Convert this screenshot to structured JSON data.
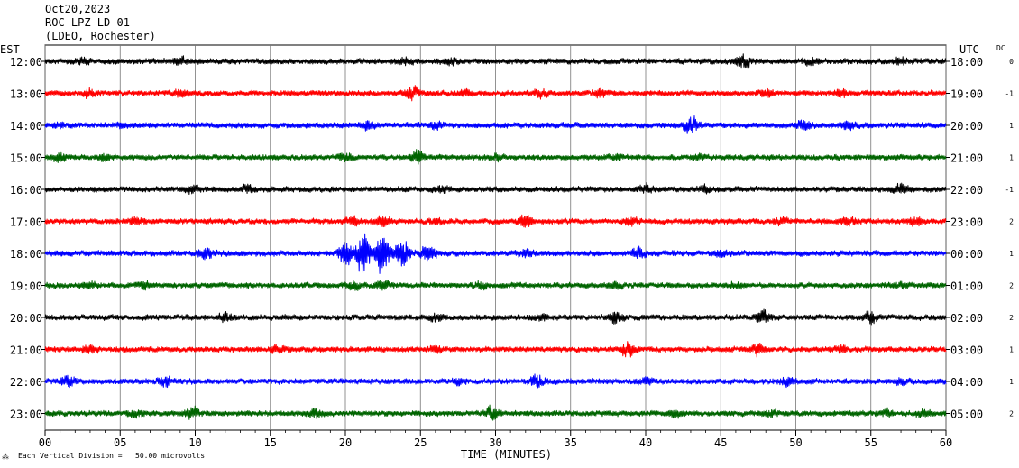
{
  "header": {
    "date": "Oct20,2023",
    "station": "ROC LPZ LD 01",
    "network": "(LDEO, Rochester)"
  },
  "labels": {
    "left_zone": "EST",
    "right_zone": "UTC",
    "dc": "DC",
    "scale_note": "Each Vertical Division =   50.00 microvolts"
  },
  "colors": {
    "trace_cycle": [
      "#000000",
      "#ff0000",
      "#0000ff",
      "#006400"
    ]
  },
  "chart_data": {
    "type": "line",
    "title": "",
    "xlabel": "TIME (MINUTES)",
    "ylabel": "",
    "xlim": [
      0,
      60
    ],
    "x_ticks": [
      "00",
      "05",
      "10",
      "15",
      "20",
      "25",
      "30",
      "35",
      "40",
      "45",
      "50",
      "55",
      "60"
    ],
    "grid": true,
    "series": [
      {
        "est": "12:00",
        "utc": "18:00",
        "dc": "0",
        "color": "#000000",
        "amplitude": 4,
        "bursts": [
          {
            "t": 2.5,
            "a": 2
          },
          {
            "t": 9,
            "a": 2
          },
          {
            "t": 24,
            "a": 2
          },
          {
            "t": 27,
            "a": 1.8
          },
          {
            "t": 46.5,
            "a": 3
          },
          {
            "t": 51,
            "a": 2
          },
          {
            "t": 57,
            "a": 1.8
          }
        ]
      },
      {
        "est": "13:00",
        "utc": "19:00",
        "dc": "-1",
        "color": "#ff0000",
        "amplitude": 4,
        "bursts": [
          {
            "t": 3,
            "a": 2
          },
          {
            "t": 9,
            "a": 1.8
          },
          {
            "t": 24.5,
            "a": 3
          },
          {
            "t": 28,
            "a": 2
          },
          {
            "t": 33,
            "a": 2.2
          },
          {
            "t": 37,
            "a": 2
          },
          {
            "t": 48,
            "a": 2.2
          },
          {
            "t": 53,
            "a": 2
          }
        ]
      },
      {
        "est": "14:00",
        "utc": "20:00",
        "dc": "1",
        "color": "#0000ff",
        "amplitude": 4,
        "bursts": [
          {
            "t": 1,
            "a": 1.6
          },
          {
            "t": 5,
            "a": 1.6
          },
          {
            "t": 21.5,
            "a": 2.2
          },
          {
            "t": 26,
            "a": 1.8
          },
          {
            "t": 43,
            "a": 3.5
          },
          {
            "t": 50.5,
            "a": 2.5
          },
          {
            "t": 53.5,
            "a": 2
          }
        ]
      },
      {
        "est": "15:00",
        "utc": "21:00",
        "dc": "1",
        "color": "#006400",
        "amplitude": 4,
        "bursts": [
          {
            "t": 1,
            "a": 2.2
          },
          {
            "t": 4,
            "a": 2
          },
          {
            "t": 20,
            "a": 2
          },
          {
            "t": 24.8,
            "a": 3
          },
          {
            "t": 30,
            "a": 1.8
          },
          {
            "t": 38,
            "a": 1.6
          },
          {
            "t": 43.5,
            "a": 1.6
          }
        ]
      },
      {
        "est": "16:00",
        "utc": "22:00",
        "dc": "-1",
        "color": "#000000",
        "amplitude": 4,
        "bursts": [
          {
            "t": 9.8,
            "a": 2
          },
          {
            "t": 13.5,
            "a": 2
          },
          {
            "t": 26.5,
            "a": 1.8
          },
          {
            "t": 40,
            "a": 2.2
          },
          {
            "t": 44,
            "a": 2
          },
          {
            "t": 57,
            "a": 2.2
          }
        ]
      },
      {
        "est": "17:00",
        "utc": "23:00",
        "dc": "2",
        "color": "#ff0000",
        "amplitude": 4,
        "bursts": [
          {
            "t": 6,
            "a": 2
          },
          {
            "t": 20.5,
            "a": 2.2
          },
          {
            "t": 22.5,
            "a": 2.5
          },
          {
            "t": 26,
            "a": 1.8
          },
          {
            "t": 32,
            "a": 3
          },
          {
            "t": 39,
            "a": 2
          },
          {
            "t": 49,
            "a": 2
          },
          {
            "t": 53.5,
            "a": 2
          },
          {
            "t": 58,
            "a": 2.2
          }
        ]
      },
      {
        "est": "18:00",
        "utc": "00:00",
        "dc": "1",
        "color": "#0000ff",
        "amplitude": 4,
        "bursts": [
          {
            "t": 10.7,
            "a": 2.5
          },
          {
            "t": 20,
            "a": 5
          },
          {
            "t": 21.2,
            "a": 9
          },
          {
            "t": 22.5,
            "a": 8
          },
          {
            "t": 23.8,
            "a": 6
          },
          {
            "t": 25.5,
            "a": 3.5
          },
          {
            "t": 32,
            "a": 2
          },
          {
            "t": 39.5,
            "a": 2.5
          },
          {
            "t": 45,
            "a": 1.8
          }
        ]
      },
      {
        "est": "19:00",
        "utc": "01:00",
        "dc": "2",
        "color": "#006400",
        "amplitude": 4,
        "bursts": [
          {
            "t": 3,
            "a": 2
          },
          {
            "t": 6.5,
            "a": 2
          },
          {
            "t": 20.5,
            "a": 2.2
          },
          {
            "t": 22.5,
            "a": 2.5
          },
          {
            "t": 29,
            "a": 1.8
          },
          {
            "t": 38,
            "a": 1.8
          },
          {
            "t": 46,
            "a": 1.6
          },
          {
            "t": 57,
            "a": 1.6
          }
        ]
      },
      {
        "est": "20:00",
        "utc": "02:00",
        "dc": "2",
        "color": "#000000",
        "amplitude": 4,
        "bursts": [
          {
            "t": 12,
            "a": 2
          },
          {
            "t": 26,
            "a": 2
          },
          {
            "t": 33,
            "a": 1.8
          },
          {
            "t": 38,
            "a": 2.5
          },
          {
            "t": 47.8,
            "a": 3
          },
          {
            "t": 55,
            "a": 2.5
          }
        ]
      },
      {
        "est": "21:00",
        "utc": "03:00",
        "dc": "1",
        "color": "#ff0000",
        "amplitude": 4,
        "bursts": [
          {
            "t": 3,
            "a": 2
          },
          {
            "t": 15.5,
            "a": 2.2
          },
          {
            "t": 26,
            "a": 1.8
          },
          {
            "t": 38.8,
            "a": 3.2
          },
          {
            "t": 47.5,
            "a": 2.8
          },
          {
            "t": 53,
            "a": 1.8
          }
        ]
      },
      {
        "est": "22:00",
        "utc": "04:00",
        "dc": "1",
        "color": "#0000ff",
        "amplitude": 4,
        "bursts": [
          {
            "t": 1.5,
            "a": 2.5
          },
          {
            "t": 8,
            "a": 2.5
          },
          {
            "t": 27.5,
            "a": 1.8
          },
          {
            "t": 32.8,
            "a": 3
          },
          {
            "t": 40,
            "a": 1.8
          },
          {
            "t": 49.5,
            "a": 2.2
          },
          {
            "t": 57,
            "a": 1.8
          }
        ]
      },
      {
        "est": "23:00",
        "utc": "05:00",
        "dc": "2",
        "color": "#006400",
        "amplitude": 4,
        "bursts": [
          {
            "t": 6,
            "a": 2
          },
          {
            "t": 9.8,
            "a": 3
          },
          {
            "t": 18,
            "a": 2
          },
          {
            "t": 29.8,
            "a": 3
          },
          {
            "t": 42,
            "a": 2
          },
          {
            "t": 48.3,
            "a": 1.8
          },
          {
            "t": 56,
            "a": 2
          },
          {
            "t": 58.5,
            "a": 2
          }
        ]
      }
    ]
  }
}
